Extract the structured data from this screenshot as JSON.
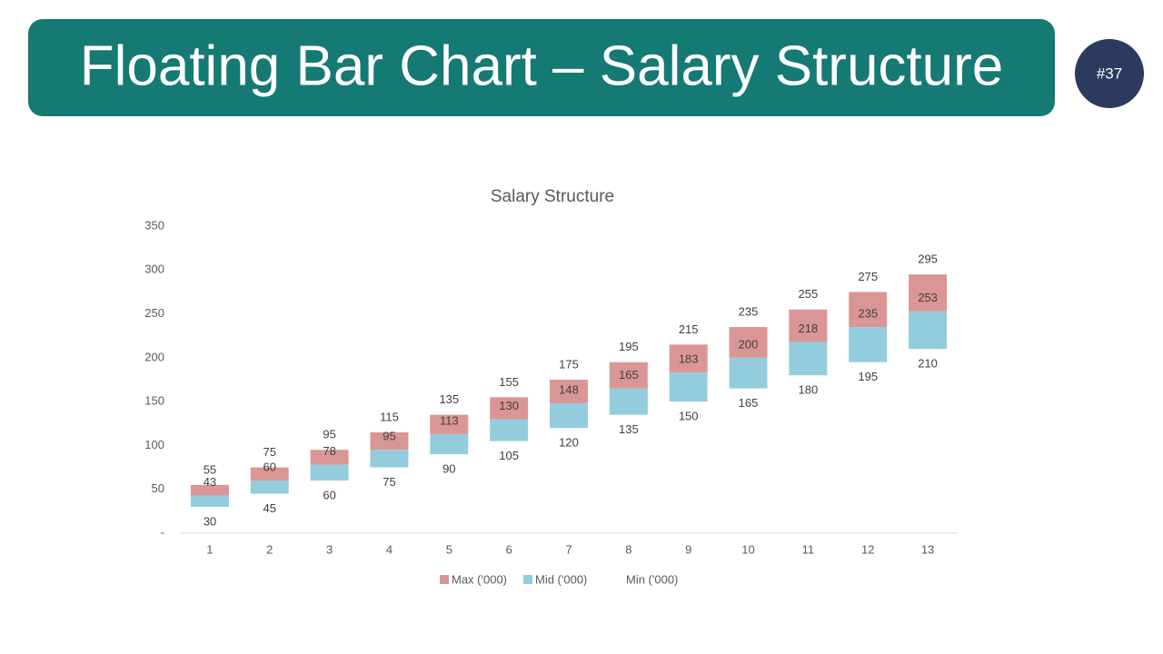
{
  "header": {
    "title": "Floating Bar Chart – Salary Structure",
    "badge": "#37"
  },
  "chart_data": {
    "type": "bar",
    "floating": true,
    "title": "Salary Structure",
    "categories": [
      "1",
      "2",
      "3",
      "4",
      "5",
      "6",
      "7",
      "8",
      "9",
      "10",
      "11",
      "12",
      "13"
    ],
    "series": [
      {
        "name": "Max ('000)",
        "color": "#da9694",
        "values": [
          55,
          75,
          95,
          115,
          135,
          155,
          175,
          195,
          215,
          235,
          255,
          275,
          295
        ]
      },
      {
        "name": "Mid ('000)",
        "color": "#93cddd",
        "values": [
          43,
          60,
          78,
          95,
          113,
          130,
          148,
          165,
          183,
          200,
          218,
          235,
          253
        ]
      },
      {
        "name": "Min ('000)",
        "values": [
          30,
          45,
          60,
          75,
          90,
          105,
          120,
          135,
          150,
          165,
          180,
          195,
          210
        ]
      }
    ],
    "ylim": [
      0,
      350
    ],
    "yticks": [
      {
        "value": 0,
        "label": "-"
      },
      50,
      100,
      150,
      200,
      250,
      300,
      350
    ],
    "grid": false,
    "legend": "bottom"
  }
}
